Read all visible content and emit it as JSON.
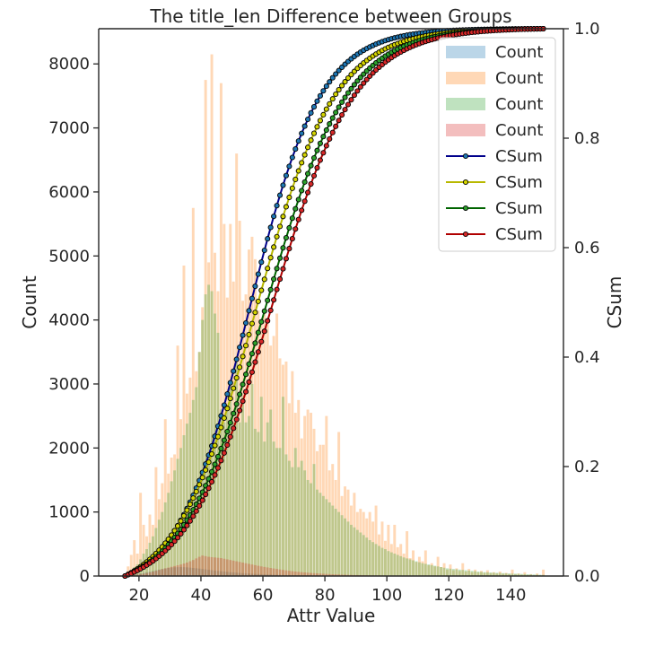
{
  "chart_data": {
    "type": "bar",
    "title": "The title_len Difference between Groups",
    "xlabel": "Attr Value",
    "ylabel": "Count",
    "y2label": "CSum",
    "xlim": [
      7,
      157
    ],
    "ylim": [
      0,
      8550
    ],
    "y2lim": [
      0,
      1
    ],
    "xticks": [
      20,
      40,
      60,
      80,
      100,
      120,
      140
    ],
    "yticks": [
      0,
      1000,
      2000,
      3000,
      4000,
      5000,
      6000,
      7000,
      8000
    ],
    "y2ticks": [
      "0.0",
      "0.2",
      "0.4",
      "0.6",
      "0.8",
      "1.0"
    ],
    "bin_start": 15,
    "bin_width": 1,
    "hist_series": [
      {
        "name": "Count",
        "color": "#1f77b4",
        "values": [
          5,
          10,
          16,
          24,
          32,
          40,
          50,
          60,
          70,
          80,
          90,
          100,
          110,
          119,
          126,
          132,
          136,
          138,
          139,
          138,
          135,
          131,
          126,
          121,
          116,
          110,
          104,
          98,
          92,
          86,
          80,
          75,
          70,
          65,
          60,
          56,
          52,
          48,
          45,
          42,
          39,
          36,
          33,
          31,
          29,
          27,
          25,
          23,
          21,
          20,
          18,
          17,
          16,
          15,
          14,
          13,
          12,
          11,
          10,
          10,
          9,
          8,
          8,
          7,
          7,
          6,
          6,
          5,
          5,
          5,
          4,
          4,
          4,
          4,
          3,
          3,
          3,
          3,
          3,
          2,
          2,
          2,
          2,
          2,
          2,
          2,
          2,
          1,
          1,
          1,
          1,
          1,
          1,
          1,
          1,
          1,
          1,
          1,
          1,
          1,
          1,
          1,
          1,
          1,
          1,
          1,
          1,
          1,
          1,
          1,
          1,
          1,
          1,
          1,
          1,
          1,
          1,
          1,
          1,
          1,
          1,
          1,
          1,
          1,
          1,
          1,
          1,
          1,
          1,
          1,
          1,
          1,
          1,
          1,
          1,
          1
        ]
      },
      {
        "name": "Count",
        "color": "#ff7f0e",
        "values": [
          40,
          150,
          330,
          560,
          350,
          1300,
          800,
          620,
          960,
          800,
          1700,
          1200,
          1450,
          2450,
          1600,
          1850,
          1900,
          3600,
          2450,
          4850,
          2850,
          3100,
          5750,
          3200,
          3500,
          4200,
          7750,
          4900,
          8150,
          5050,
          4450,
          7700,
          5500,
          4350,
          5500,
          4600,
          6600,
          5550,
          4300,
          4400,
          5100,
          5300,
          4950,
          4150,
          4000,
          4150,
          4000,
          3600,
          3750,
          4100,
          3400,
          3300,
          3350,
          2700,
          3200,
          2550,
          2750,
          2150,
          2500,
          2600,
          2550,
          2300,
          1950,
          2050,
          2050,
          2500,
          1650,
          1750,
          1500,
          2250,
          1250,
          1400,
          1350,
          1100,
          1300,
          1000,
          1050,
          1000,
          900,
          1000,
          850,
          1100,
          650,
          850,
          550,
          800,
          500,
          800,
          450,
          500,
          350,
          700,
          280,
          400,
          220,
          300,
          230,
          400,
          170,
          200,
          150,
          300,
          140,
          200,
          100,
          180,
          90,
          120,
          80,
          200,
          70,
          110,
          60,
          100,
          55,
          80,
          50,
          90,
          45,
          60,
          40,
          70,
          35,
          50,
          30,
          100,
          25,
          40,
          20,
          60,
          15,
          30,
          10,
          40,
          10,
          100
        ]
      },
      {
        "name": "Count",
        "color": "#2ca02c",
        "values": [
          20,
          45,
          90,
          140,
          180,
          260,
          350,
          420,
          520,
          620,
          750,
          880,
          1000,
          1150,
          1300,
          1480,
          1650,
          1830,
          2000,
          2200,
          2380,
          2550,
          2750,
          2950,
          3500,
          4000,
          4400,
          4550,
          4450,
          4100,
          3800,
          2600,
          2400,
          2600,
          3050,
          2400,
          3350,
          2400,
          2800,
          2400,
          2500,
          3000,
          2300,
          2250,
          2800,
          2100,
          2400,
          2600,
          2100,
          2000,
          2000,
          2800,
          1900,
          1800,
          1700,
          2000,
          1700,
          1800,
          1650,
          1500,
          1450,
          1750,
          1350,
          1300,
          1250,
          1200,
          1150,
          1100,
          1050,
          1000,
          950,
          900,
          850,
          800,
          760,
          720,
          680,
          640,
          600,
          560,
          530,
          500,
          470,
          440,
          420,
          390,
          370,
          350,
          330,
          310,
          290,
          275,
          260,
          245,
          230,
          215,
          200,
          190,
          180,
          170,
          160,
          150,
          140,
          130,
          120,
          115,
          110,
          105,
          100,
          95,
          90,
          85,
          80,
          75,
          70,
          65,
          60,
          58,
          55,
          52,
          50,
          48,
          45,
          42,
          40,
          38,
          36,
          34,
          32,
          30,
          28,
          26,
          24,
          22,
          20,
          18
        ]
      },
      {
        "name": "Count",
        "color": "#d62728",
        "values": [
          3,
          6,
          10,
          16,
          22,
          30,
          38,
          48,
          58,
          70,
          82,
          95,
          108,
          120,
          132,
          144,
          156,
          168,
          180,
          195,
          210,
          230,
          250,
          275,
          300,
          320,
          310,
          300,
          295,
          290,
          285,
          280,
          270,
          260,
          250,
          240,
          230,
          220,
          210,
          200,
          190,
          180,
          170,
          160,
          150,
          142,
          134,
          126,
          118,
          110,
          102,
          95,
          88,
          82,
          76,
          70,
          65,
          60,
          56,
          52,
          48,
          45,
          42,
          39,
          36,
          33,
          30,
          28,
          26,
          24,
          22,
          20,
          18,
          17,
          16,
          15,
          14,
          13,
          12,
          11,
          10,
          9,
          9,
          8,
          8,
          7,
          7,
          6,
          6,
          5,
          5,
          5,
          4,
          4,
          4,
          3,
          3,
          3,
          3,
          3,
          2,
          2,
          2,
          2,
          2,
          2,
          2,
          2,
          1,
          1,
          1,
          1,
          1,
          1,
          1,
          1,
          1,
          1,
          1,
          1,
          1,
          1,
          1,
          1,
          1,
          1,
          1,
          1,
          1,
          1,
          1,
          1,
          1,
          1,
          1,
          1
        ]
      }
    ],
    "csum_series": [
      {
        "name": "CSum",
        "color": "#00008b",
        "center": 55,
        "scale": 11.5
      },
      {
        "name": "CSum",
        "color": "#b8b800",
        "center": 57,
        "scale": 12.8
      },
      {
        "name": "CSum",
        "color": "#006400",
        "center": 60,
        "scale": 13.2
      },
      {
        "name": "CSum",
        "color": "#b00000",
        "center": 62,
        "scale": 13.5
      }
    ],
    "csum_x_range": [
      15,
      150
    ],
    "legend_position": "top-right"
  },
  "legend": [
    {
      "label": "Count",
      "kind": "patch",
      "color": "#1f77b4"
    },
    {
      "label": "Count",
      "kind": "patch",
      "color": "#ff7f0e"
    },
    {
      "label": "Count",
      "kind": "patch",
      "color": "#2ca02c"
    },
    {
      "label": "Count",
      "kind": "patch",
      "color": "#d62728"
    },
    {
      "label": "CSum",
      "kind": "line",
      "color": "#00008b",
      "marker_fill": "#1f77b4"
    },
    {
      "label": "CSum",
      "kind": "line",
      "color": "#b8b800",
      "marker_fill": "#d4d400"
    },
    {
      "label": "CSum",
      "kind": "line",
      "color": "#006400",
      "marker_fill": "#2ca02c"
    },
    {
      "label": "CSum",
      "kind": "line",
      "color": "#b00000",
      "marker_fill": "#d62728"
    }
  ]
}
